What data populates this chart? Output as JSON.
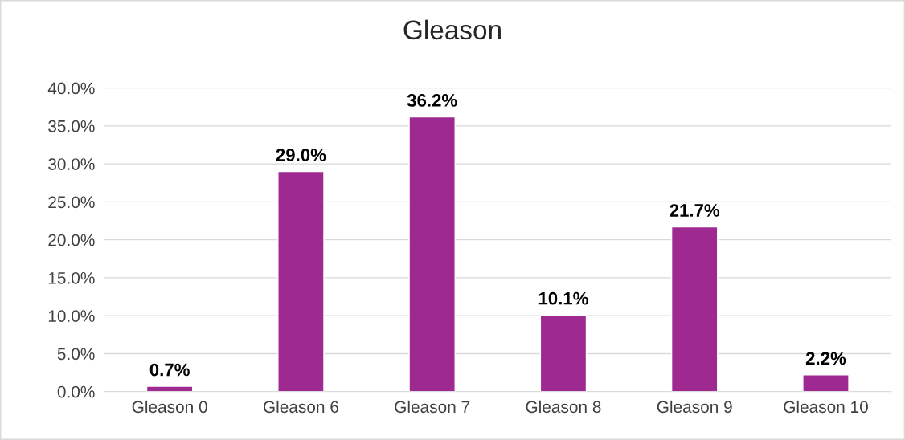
{
  "chart_data": {
    "type": "bar",
    "title": "Gleason",
    "categories": [
      "Gleason 0",
      "Gleason 6",
      "Gleason 7",
      "Gleason 8",
      "Gleason 9",
      "Gleason 10"
    ],
    "values": [
      0.7,
      29.0,
      36.2,
      10.1,
      21.7,
      2.2
    ],
    "value_labels": [
      "0.7%",
      "29.0%",
      "36.2%",
      "10.1%",
      "21.7%",
      "2.2%"
    ],
    "color": "#9e2a91",
    "ylim": [
      0,
      40
    ],
    "yticks": [
      {
        "value": 0,
        "label": "0.0%"
      },
      {
        "value": 5,
        "label": "5.0%"
      },
      {
        "value": 10,
        "label": "10.0%"
      },
      {
        "value": 15,
        "label": "15.0%"
      },
      {
        "value": 20,
        "label": "20.0%"
      },
      {
        "value": 25,
        "label": "25.0%"
      },
      {
        "value": 30,
        "label": "30.0%"
      },
      {
        "value": 35,
        "label": "35.0%"
      },
      {
        "value": 40,
        "label": "40.0%"
      }
    ],
    "grid": "y"
  }
}
